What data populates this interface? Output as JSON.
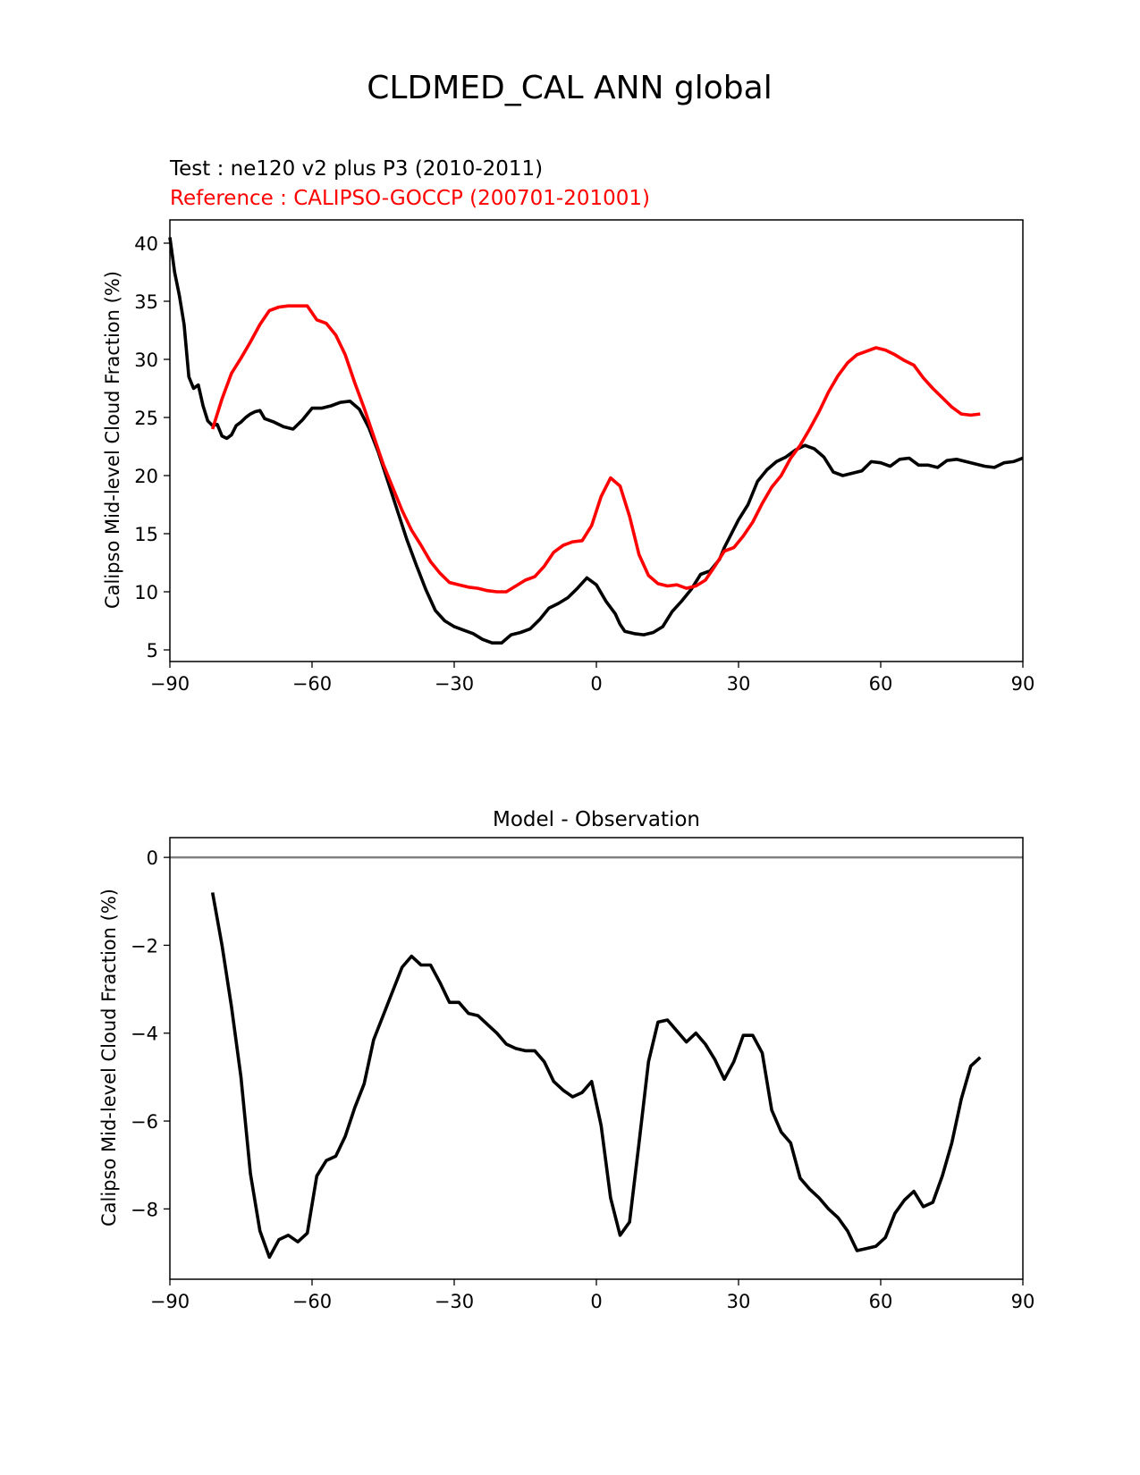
{
  "figure": {
    "title": "CLDMED_CAL ANN global"
  },
  "chart_data": [
    {
      "type": "line",
      "test_label": "Test : ne120 v2 plus P3 (2010-2011)",
      "reference_label": "Reference : CALIPSO-GOCCP (200701-201001)",
      "xlabel": "",
      "ylabel": "Calipso Mid-level Cloud Fraction (%)",
      "xlim": [
        -90,
        90
      ],
      "ylim": [
        4,
        42
      ],
      "xticks": [
        -90,
        -60,
        -30,
        0,
        30,
        60,
        90
      ],
      "xtick_labels": [
        "−90",
        "−60",
        "−30",
        "0",
        "30",
        "60",
        "90"
      ],
      "yticks": [
        5,
        10,
        15,
        20,
        25,
        30,
        35,
        40
      ],
      "ytick_labels": [
        "5",
        "10",
        "15",
        "20",
        "25",
        "30",
        "35",
        "40"
      ],
      "series": [
        {
          "name": "Test",
          "color": "#000000",
          "x": [
            -90,
            -89,
            -88,
            -87,
            -86,
            -85,
            -84,
            -83,
            -82,
            -81,
            -80,
            -79,
            -78,
            -77,
            -76,
            -75,
            -74,
            -73,
            -72,
            -71,
            -70,
            -68,
            -66,
            -64,
            -62,
            -60,
            -58,
            -56,
            -54,
            -52,
            -50,
            -48,
            -46,
            -44,
            -42,
            -40,
            -38,
            -36,
            -34,
            -32,
            -30,
            -28,
            -26,
            -24,
            -22,
            -20,
            -18,
            -16,
            -14,
            -12,
            -10,
            -8,
            -6,
            -4,
            -2,
            0,
            2,
            4,
            5,
            6,
            8,
            10,
            12,
            14,
            16,
            18,
            20,
            22,
            24,
            26,
            27,
            28,
            30,
            32,
            34,
            36,
            38,
            40,
            42,
            44,
            46,
            48,
            50,
            52,
            54,
            56,
            58,
            60,
            62,
            64,
            66,
            68,
            70,
            72,
            74,
            76,
            78,
            80,
            82,
            84,
            86,
            88,
            90
          ],
          "values": [
            40.5,
            37.5,
            35.5,
            33,
            28.5,
            27.5,
            27.8,
            26,
            24.7,
            24.3,
            24.4,
            23.4,
            23.2,
            23.5,
            24.3,
            24.6,
            25,
            25.3,
            25.5,
            25.6,
            24.9,
            24.6,
            24.2,
            24.0,
            24.8,
            25.8,
            25.8,
            26.0,
            26.3,
            26.4,
            25.7,
            24.1,
            22.0,
            19.5,
            17.0,
            14.5,
            12.3,
            10.2,
            8.4,
            7.5,
            7.0,
            6.7,
            6.4,
            5.9,
            5.6,
            5.6,
            6.3,
            6.5,
            6.8,
            7.6,
            8.6,
            9.0,
            9.5,
            10.3,
            11.2,
            10.6,
            9.2,
            8.1,
            7.2,
            6.6,
            6.4,
            6.3,
            6.5,
            7.0,
            8.3,
            9.2,
            10.2,
            11.5,
            11.8,
            12.8,
            13.8,
            14.6,
            16.2,
            17.5,
            19.5,
            20.5,
            21.2,
            21.6,
            22.2,
            22.6,
            22.3,
            21.6,
            20.3,
            20.0,
            20.2,
            20.4,
            21.2,
            21.1,
            20.8,
            21.4,
            21.5,
            20.9,
            20.9,
            20.7,
            21.3,
            21.4,
            21.2,
            21.0,
            20.8,
            20.7,
            21.1,
            21.2,
            21.5
          ]
        },
        {
          "name": "Reference",
          "color": "#ff0000",
          "x": [
            -81,
            -79,
            -77,
            -75,
            -73,
            -71,
            -69,
            -67,
            -65,
            -63,
            -61,
            -59,
            -57,
            -55,
            -53,
            -51,
            -49,
            -47,
            -45,
            -43,
            -41,
            -39,
            -37,
            -35,
            -33,
            -31,
            -29,
            -27,
            -25,
            -23,
            -21,
            -19,
            -17,
            -15,
            -13,
            -11,
            -9,
            -7,
            -5,
            -3,
            -1,
            1,
            3,
            5,
            7,
            9,
            11,
            13,
            15,
            17,
            19,
            21,
            23,
            25,
            27,
            29,
            31,
            33,
            35,
            37,
            39,
            41,
            43,
            45,
            47,
            49,
            51,
            53,
            55,
            57,
            59,
            61,
            63,
            65,
            67,
            69,
            71,
            73,
            75,
            77,
            79,
            81
          ],
          "values": [
            24,
            26.6,
            28.8,
            30.1,
            31.5,
            33,
            34.2,
            34.5,
            34.6,
            34.6,
            34.6,
            33.4,
            33.1,
            32.1,
            30.4,
            28.0,
            25.8,
            23.4,
            21.0,
            19.0,
            17.0,
            15.3,
            14.0,
            12.6,
            11.6,
            10.8,
            10.6,
            10.4,
            10.3,
            10.1,
            10.0,
            10.0,
            10.5,
            11.0,
            11.3,
            12.2,
            13.4,
            14.0,
            14.3,
            14.4,
            15.7,
            18.2,
            19.8,
            19.1,
            16.5,
            13.2,
            11.4,
            10.7,
            10.5,
            10.6,
            10.3,
            10.5,
            11.0,
            12.2,
            13.5,
            13.8,
            14.8,
            16.0,
            17.6,
            19.0,
            20.0,
            21.5,
            22.6,
            24.0,
            25.5,
            27.2,
            28.6,
            29.7,
            30.4,
            30.7,
            31.0,
            30.8,
            30.4,
            29.9,
            29.5,
            28.4,
            27.5,
            26.7,
            25.9,
            25.3,
            25.2,
            25.3
          ]
        }
      ]
    },
    {
      "type": "line",
      "title": "Model - Observation",
      "xlabel": "",
      "ylabel": "Calipso Mid-level Cloud Fraction (%)",
      "xlim": [
        -90,
        90
      ],
      "ylim": [
        -9.6,
        0.45
      ],
      "xticks": [
        -90,
        -60,
        -30,
        0,
        30,
        60,
        90
      ],
      "xtick_labels": [
        "−90",
        "−60",
        "−30",
        "0",
        "30",
        "60",
        "90"
      ],
      "yticks": [
        0,
        -2,
        -4,
        -6,
        -8
      ],
      "ytick_labels": [
        "0",
        "−2",
        "−4",
        "−6",
        "−8"
      ],
      "zero_line_color": "#808080",
      "series": [
        {
          "name": "Difference",
          "color": "#000000",
          "x": [
            -81,
            -79,
            -77,
            -75,
            -73,
            -71,
            -69,
            -67,
            -65,
            -63,
            -61,
            -59,
            -57,
            -55,
            -53,
            -51,
            -49,
            -47,
            -45,
            -43,
            -41,
            -39,
            -37,
            -35,
            -33,
            -31,
            -29,
            -27,
            -25,
            -23,
            -21,
            -19,
            -17,
            -15,
            -13,
            -11,
            -9,
            -7,
            -5,
            -3,
            -1,
            1,
            3,
            5,
            7,
            9,
            11,
            13,
            15,
            17,
            19,
            21,
            23,
            25,
            27,
            29,
            31,
            33,
            35,
            37,
            39,
            41,
            43,
            45,
            47,
            49,
            51,
            53,
            55,
            57,
            59,
            61,
            63,
            65,
            67,
            69,
            71,
            73,
            75,
            77,
            79,
            81
          ],
          "values": [
            -0.8,
            -2.0,
            -3.4,
            -5.0,
            -7.2,
            -8.5,
            -9.1,
            -8.7,
            -8.6,
            -8.75,
            -8.55,
            -7.25,
            -6.9,
            -6.8,
            -6.35,
            -5.7,
            -5.15,
            -4.15,
            -3.6,
            -3.05,
            -2.5,
            -2.25,
            -2.45,
            -2.45,
            -2.85,
            -3.3,
            -3.3,
            -3.55,
            -3.6,
            -3.8,
            -4.0,
            -4.25,
            -4.35,
            -4.4,
            -4.4,
            -4.65,
            -5.1,
            -5.3,
            -5.45,
            -5.35,
            -5.1,
            -6.1,
            -7.75,
            -8.6,
            -8.3,
            -6.5,
            -4.65,
            -3.75,
            -3.7,
            -3.95,
            -4.2,
            -4.0,
            -4.25,
            -4.6,
            -5.05,
            -4.65,
            -4.05,
            -4.05,
            -4.45,
            -5.75,
            -6.25,
            -6.5,
            -7.3,
            -7.55,
            -7.75,
            -8.0,
            -8.2,
            -8.5,
            -8.95,
            -8.9,
            -8.85,
            -8.65,
            -8.1,
            -7.8,
            -7.6,
            -7.95,
            -7.85,
            -7.25,
            -6.5,
            -5.5,
            -4.75,
            -4.55
          ]
        }
      ]
    }
  ]
}
